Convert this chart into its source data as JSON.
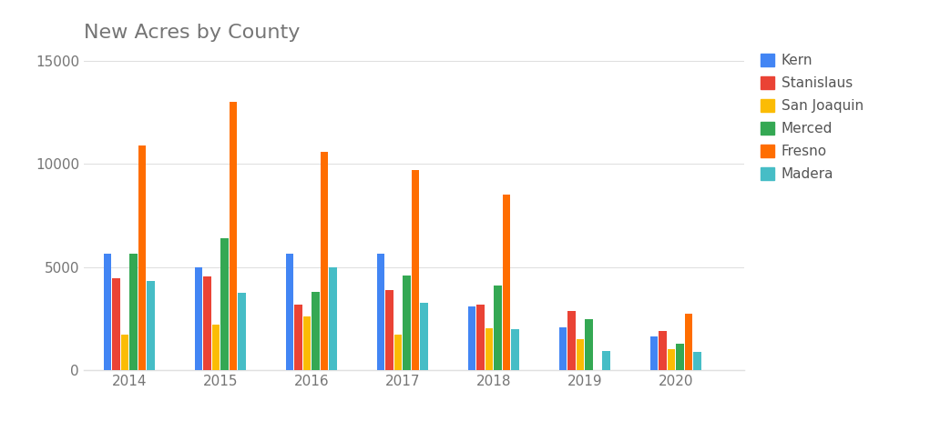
{
  "title": "New Acres by County",
  "title_fontsize": 16,
  "title_color": "#757575",
  "years": [
    2014,
    2015,
    2016,
    2017,
    2018,
    2019,
    2020
  ],
  "counties": [
    "Kern",
    "Stanislaus",
    "San Joaquin",
    "Merced",
    "Fresno",
    "Madera"
  ],
  "colors": [
    "#4285F4",
    "#EA4335",
    "#FBBC04",
    "#34A853",
    "#FF6D00",
    "#46BDC6"
  ],
  "data": {
    "Kern": [
      5650,
      5000,
      5650,
      5650,
      3100,
      2100,
      1650
    ],
    "Stanislaus": [
      4450,
      4550,
      3200,
      3900,
      3200,
      2900,
      1900
    ],
    "San Joaquin": [
      1750,
      2200,
      2600,
      1750,
      2050,
      1500,
      1050
    ],
    "Merced": [
      5650,
      6400,
      3800,
      4600,
      4100,
      2500,
      1300
    ],
    "Fresno": [
      10900,
      13000,
      10600,
      9700,
      8500,
      0,
      2750
    ],
    "Madera": [
      4350,
      3750,
      5000,
      3300,
      2000,
      950,
      900
    ]
  },
  "ylim": [
    0,
    15500
  ],
  "yticks": [
    0,
    5000,
    10000,
    15000
  ],
  "background_color": "#ffffff",
  "grid_color": "#e0e0e0",
  "bar_width": 0.095,
  "legend_fontsize": 11,
  "tick_fontsize": 11
}
